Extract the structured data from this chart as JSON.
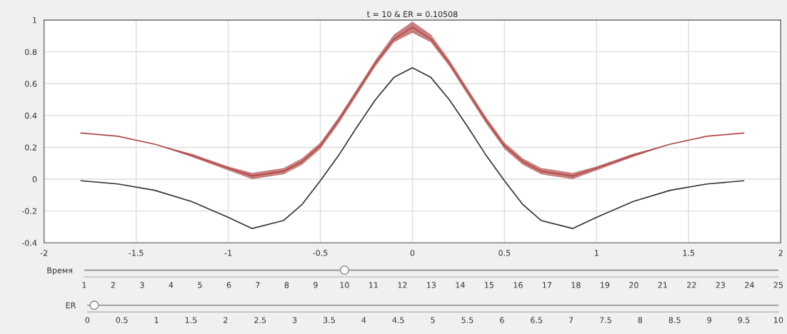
{
  "chart_data": [
    {
      "type": "line",
      "title": "t = 10 & ER = 0.10508",
      "x": [
        -1.8,
        -1.6,
        -1.4,
        -1.2,
        -1.0,
        -0.87,
        -0.7,
        -0.6,
        -0.5,
        -0.4,
        -0.3,
        -0.2,
        -0.1,
        0,
        0.1,
        0.2,
        0.3,
        0.4,
        0.5,
        0.6,
        0.7,
        0.87,
        1.0,
        1.2,
        1.4,
        1.6,
        1.8
      ],
      "series": [
        {
          "color": "#333333",
          "values": [
            -0.01,
            -0.03,
            -0.07,
            -0.14,
            -0.24,
            -0.31,
            -0.26,
            -0.16,
            -0.01,
            0.15,
            0.33,
            0.5,
            0.64,
            0.7,
            0.64,
            0.5,
            0.33,
            0.15,
            -0.01,
            -0.16,
            -0.26,
            -0.31,
            -0.24,
            -0.14,
            -0.07,
            -0.03,
            -0.01
          ]
        },
        {
          "color": "#b04848",
          "values": [
            0.29,
            0.27,
            0.22,
            0.15,
            0.07,
            0.02,
            0.05,
            0.11,
            0.21,
            0.37,
            0.55,
            0.73,
            0.88,
            0.955,
            0.88,
            0.73,
            0.55,
            0.37,
            0.21,
            0.11,
            0.05,
            0.02,
            0.07,
            0.15,
            0.22,
            0.27,
            0.29
          ],
          "lower": [
            0.29,
            0.27,
            0.22,
            0.14,
            0.055,
            0.0,
            0.03,
            0.09,
            0.19,
            0.35,
            0.53,
            0.71,
            0.86,
            0.92,
            0.86,
            0.71,
            0.53,
            0.35,
            0.19,
            0.09,
            0.03,
            0.0,
            0.055,
            0.14,
            0.22,
            0.27,
            0.29
          ],
          "upper": [
            0.29,
            0.27,
            0.22,
            0.16,
            0.08,
            0.04,
            0.07,
            0.13,
            0.23,
            0.39,
            0.57,
            0.75,
            0.91,
            0.99,
            0.91,
            0.75,
            0.57,
            0.39,
            0.23,
            0.13,
            0.07,
            0.04,
            0.08,
            0.16,
            0.22,
            0.27,
            0.29
          ]
        }
      ],
      "xlim": [
        -2,
        2
      ],
      "xticks": [
        -2,
        -1.5,
        -1,
        -0.5,
        0,
        0.5,
        1,
        1.5,
        2
      ],
      "ylim": [
        -0.4,
        1
      ],
      "yticks": [
        -0.4,
        -0.2,
        0,
        0.2,
        0.4,
        0.6,
        0.8,
        1
      ],
      "grid": true
    },
    {
      "type": "scatter",
      "orientation": "horizontal",
      "categories": [
        "Время"
      ],
      "values": [
        10
      ],
      "color": "#ffffff",
      "xlim": [
        1,
        25
      ],
      "xticks": [
        1,
        2,
        3,
        4,
        5,
        6,
        7,
        8,
        9,
        10,
        11,
        12,
        13,
        14,
        15,
        16,
        17,
        18,
        19,
        20,
        21,
        22,
        23,
        24,
        25
      ],
      "grid": "y",
      "marker": "circle"
    },
    {
      "type": "scatter",
      "orientation": "horizontal",
      "categories": [
        "ER"
      ],
      "values": [
        0.1
      ],
      "color": "#ffffff",
      "xlim": [
        0,
        10
      ],
      "xticks": [
        0,
        0.5,
        1,
        1.5,
        2,
        2.5,
        3,
        3.5,
        4,
        4.5,
        5,
        5.5,
        6,
        6.5,
        7,
        7.5,
        8,
        8.5,
        9,
        9.5,
        10
      ],
      "grid": "y",
      "marker": "circle"
    }
  ]
}
